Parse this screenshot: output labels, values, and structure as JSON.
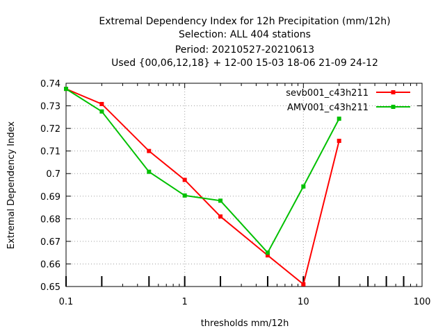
{
  "chart_data": {
    "type": "line",
    "title_lines": [
      "Extremal Dependency Index  for 12h Precipitation (mm/12h)",
      "Selection: ALL    404 stations",
      "Period: 20210527-20210613",
      "Used {00,06,12,18} + 12-00 15-03 18-06 21-09 24-12"
    ],
    "xlabel": "thresholds mm/12h",
    "ylabel": "Extremal Dependency Index",
    "x_scale": "log",
    "xlim": [
      0.1,
      100
    ],
    "ylim": [
      0.65,
      0.74
    ],
    "x_ticks": [
      {
        "value": 0.1,
        "label": "0.1"
      },
      {
        "value": 1,
        "label": "1"
      },
      {
        "value": 10,
        "label": "10"
      },
      {
        "value": 100,
        "label": "100"
      }
    ],
    "y_ticks": [
      {
        "value": 0.65,
        "label": "0.65"
      },
      {
        "value": 0.66,
        "label": "0.66"
      },
      {
        "value": 0.67,
        "label": "0.67"
      },
      {
        "value": 0.68,
        "label": "0.68"
      },
      {
        "value": 0.69,
        "label": "0.69"
      },
      {
        "value": 0.7,
        "label": "0.7"
      },
      {
        "value": 0.71,
        "label": "0.71"
      },
      {
        "value": 0.72,
        "label": "0.72"
      },
      {
        "value": 0.73,
        "label": "0.73"
      },
      {
        "value": 0.74,
        "label": "0.74"
      }
    ],
    "sample_tick_x": [
      0.1,
      0.2,
      0.5,
      1,
      2,
      5,
      10,
      20,
      35,
      50,
      70
    ],
    "grid": true,
    "legend_position": "top-right",
    "series": [
      {
        "name": "sevb001_c43h211",
        "color": "#ff0000",
        "x": [
          0.1,
          0.2,
          0.5,
          1,
          2,
          5,
          10,
          20
        ],
        "y": [
          0.7375,
          0.7308,
          0.71,
          0.6972,
          0.681,
          0.6638,
          0.651,
          0.7145
        ]
      },
      {
        "name": "AMV001_c43h211",
        "color": "#00c000",
        "x": [
          0.1,
          0.2,
          0.5,
          1,
          2,
          5,
          10,
          20
        ],
        "y": [
          0.7375,
          0.7275,
          0.7008,
          0.6903,
          0.688,
          0.665,
          0.6943,
          0.7243
        ]
      }
    ]
  }
}
